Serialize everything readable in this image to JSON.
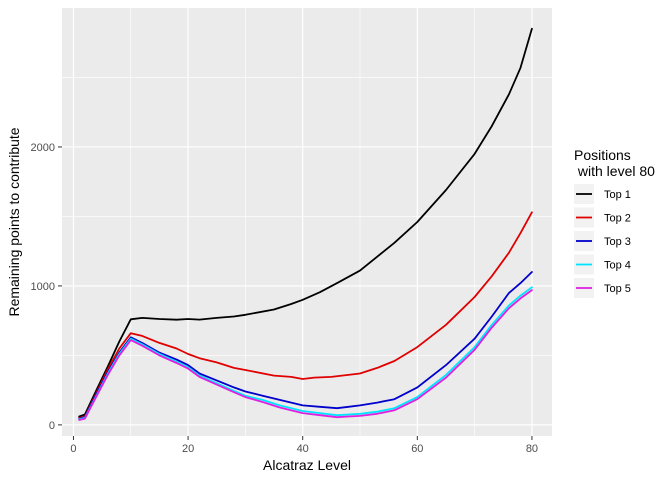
{
  "chart_data": {
    "type": "line",
    "xlabel": "Alcatraz Level",
    "ylabel": "Remaining points to contribute",
    "xlim": [
      -2,
      83.5
    ],
    "ylim": [
      -80,
      3000
    ],
    "x_ticks": [
      0,
      20,
      40,
      60,
      80
    ],
    "y_ticks": [
      0,
      1000,
      2000
    ],
    "grid": true,
    "legend": {
      "title_lines": [
        "Positions",
        " with level 80"
      ],
      "placement": "right"
    },
    "series": [
      {
        "name": "Top 1",
        "color": "#000000",
        "points": [
          [
            1,
            60
          ],
          [
            2,
            75
          ],
          [
            4,
            250
          ],
          [
            6,
            420
          ],
          [
            8,
            600
          ],
          [
            10,
            760
          ],
          [
            12,
            770
          ],
          [
            15,
            762
          ],
          [
            18,
            757
          ],
          [
            20,
            762
          ],
          [
            22,
            758
          ],
          [
            25,
            770
          ],
          [
            28,
            780
          ],
          [
            30,
            792
          ],
          [
            35,
            830
          ],
          [
            38,
            870
          ],
          [
            40,
            900
          ],
          [
            43,
            955
          ],
          [
            46,
            1020
          ],
          [
            50,
            1110
          ],
          [
            53,
            1210
          ],
          [
            56,
            1310
          ],
          [
            60,
            1460
          ],
          [
            65,
            1690
          ],
          [
            70,
            1950
          ],
          [
            73,
            2150
          ],
          [
            76,
            2380
          ],
          [
            78,
            2570
          ],
          [
            80,
            2850
          ]
        ]
      },
      {
        "name": "Top 2",
        "color": "#e00000",
        "points": [
          [
            1,
            50
          ],
          [
            2,
            60
          ],
          [
            4,
            230
          ],
          [
            6,
            400
          ],
          [
            8,
            550
          ],
          [
            10,
            660
          ],
          [
            12,
            640
          ],
          [
            15,
            590
          ],
          [
            18,
            550
          ],
          [
            20,
            510
          ],
          [
            22,
            480
          ],
          [
            25,
            450
          ],
          [
            28,
            410
          ],
          [
            30,
            395
          ],
          [
            35,
            355
          ],
          [
            38,
            345
          ],
          [
            40,
            330
          ],
          [
            42,
            340
          ],
          [
            45,
            345
          ],
          [
            50,
            370
          ],
          [
            53,
            410
          ],
          [
            56,
            460
          ],
          [
            60,
            560
          ],
          [
            65,
            720
          ],
          [
            70,
            920
          ],
          [
            73,
            1070
          ],
          [
            76,
            1240
          ],
          [
            78,
            1380
          ],
          [
            80,
            1530
          ]
        ]
      },
      {
        "name": "Top 3",
        "color": "#0000cc",
        "points": [
          [
            1,
            45
          ],
          [
            2,
            55
          ],
          [
            4,
            220
          ],
          [
            6,
            380
          ],
          [
            8,
            520
          ],
          [
            10,
            630
          ],
          [
            12,
            590
          ],
          [
            15,
            520
          ],
          [
            18,
            470
          ],
          [
            20,
            430
          ],
          [
            22,
            370
          ],
          [
            25,
            320
          ],
          [
            28,
            270
          ],
          [
            30,
            240
          ],
          [
            33,
            210
          ],
          [
            36,
            180
          ],
          [
            40,
            140
          ],
          [
            43,
            130
          ],
          [
            46,
            120
          ],
          [
            48,
            130
          ],
          [
            50,
            140
          ],
          [
            53,
            160
          ],
          [
            56,
            185
          ],
          [
            60,
            270
          ],
          [
            65,
            430
          ],
          [
            70,
            620
          ],
          [
            73,
            780
          ],
          [
            76,
            950
          ],
          [
            78,
            1020
          ],
          [
            80,
            1100
          ]
        ]
      },
      {
        "name": "Top 4",
        "color": "#00e5ff",
        "points": [
          [
            1,
            40
          ],
          [
            2,
            50
          ],
          [
            4,
            210
          ],
          [
            6,
            370
          ],
          [
            8,
            510
          ],
          [
            10,
            620
          ],
          [
            12,
            580
          ],
          [
            15,
            510
          ],
          [
            18,
            455
          ],
          [
            20,
            415
          ],
          [
            22,
            355
          ],
          [
            25,
            300
          ],
          [
            28,
            245
          ],
          [
            30,
            210
          ],
          [
            33,
            180
          ],
          [
            36,
            140
          ],
          [
            40,
            100
          ],
          [
            43,
            85
          ],
          [
            46,
            70
          ],
          [
            48,
            75
          ],
          [
            50,
            80
          ],
          [
            53,
            95
          ],
          [
            56,
            120
          ],
          [
            60,
            200
          ],
          [
            65,
            360
          ],
          [
            70,
            560
          ],
          [
            73,
            720
          ],
          [
            76,
            860
          ],
          [
            78,
            930
          ],
          [
            80,
            990
          ]
        ]
      },
      {
        "name": "Top 5",
        "color": "#e020e0",
        "points": [
          [
            1,
            35
          ],
          [
            2,
            45
          ],
          [
            4,
            205
          ],
          [
            6,
            360
          ],
          [
            8,
            500
          ],
          [
            10,
            610
          ],
          [
            12,
            570
          ],
          [
            15,
            500
          ],
          [
            18,
            445
          ],
          [
            20,
            405
          ],
          [
            22,
            345
          ],
          [
            25,
            290
          ],
          [
            28,
            235
          ],
          [
            30,
            200
          ],
          [
            33,
            165
          ],
          [
            36,
            125
          ],
          [
            40,
            85
          ],
          [
            43,
            70
          ],
          [
            46,
            55
          ],
          [
            48,
            60
          ],
          [
            50,
            65
          ],
          [
            53,
            80
          ],
          [
            56,
            105
          ],
          [
            60,
            185
          ],
          [
            65,
            340
          ],
          [
            70,
            540
          ],
          [
            73,
            700
          ],
          [
            76,
            840
          ],
          [
            78,
            910
          ],
          [
            80,
            970
          ]
        ]
      }
    ]
  }
}
